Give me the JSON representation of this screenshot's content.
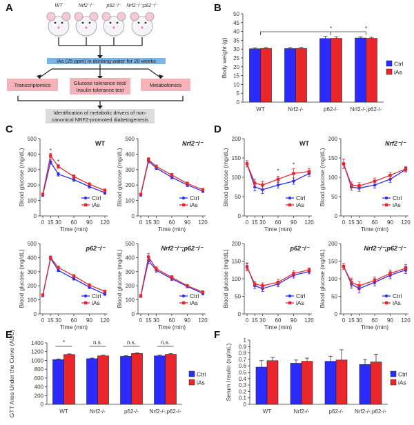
{
  "panel_letters": {
    "a": "A",
    "b": "B",
    "c": "C",
    "d": "D",
    "e": "E",
    "f": "F"
  },
  "panelA": {
    "mice": [
      "WT",
      "Nrf2⁻/⁻",
      "p62⁻/⁻",
      "Nrf2⁻/⁻;p62⁻/⁻"
    ],
    "treatment": "iAs (25 ppm) in drinking water for 20 weeks",
    "assays": [
      "Transcriptomics",
      "Glucose tolerance test/",
      "Insulin tolerance test",
      "Metabolomics"
    ],
    "result_line1": "Identification of metabolic drivers of non-",
    "result_line2": "canonical NRF2-promoted diabetogenesis",
    "colors": {
      "treatment_box": "#7fb3e0",
      "assay_box": "#f3b3b8",
      "result_box": "#dcdcdc"
    }
  },
  "legend": {
    "ctrl": "Ctrl",
    "ias": "iAs"
  },
  "colors": {
    "ctrl": "#2b2bff",
    "ias": "#e8262c",
    "error": "#333333"
  },
  "chart_data": [
    {
      "id": "B",
      "type": "bar",
      "ylabel": "Body weight (g)",
      "ylim": [
        0,
        50
      ],
      "yticks": [
        0,
        5,
        10,
        15,
        20,
        25,
        30,
        35,
        40,
        45,
        50
      ],
      "categories": [
        "WT",
        "Nrf2-/-",
        "p62-/-",
        "Nrf2-/-;p62-/-"
      ],
      "series": [
        {
          "name": "Ctrl",
          "values": [
            30.2,
            30.3,
            36.0,
            36.3
          ]
        },
        {
          "name": "iAs",
          "values": [
            30.4,
            30.4,
            36.1,
            36.1
          ]
        }
      ],
      "errors": [
        [
          0.5,
          0.6,
          1.2,
          0.6
        ],
        [
          0.5,
          0.6,
          0.8,
          0.6
        ]
      ],
      "annotations": [
        "*",
        "*"
      ]
    },
    {
      "id": "C",
      "type": "line",
      "ylabel": "Blood glucose (mg/dL)",
      "xlabel": "Time (min)",
      "x": [
        0,
        15,
        30,
        60,
        90,
        120
      ],
      "xlim": [
        0,
        120
      ],
      "ylim": [
        0,
        500
      ],
      "yticks": [
        0,
        100,
        200,
        300,
        400,
        500
      ],
      "panels": [
        {
          "title": "WT",
          "italic": false,
          "ctrl": [
            135,
            350,
            270,
            235,
            190,
            150
          ],
          "ias": [
            140,
            390,
            320,
            255,
            205,
            165
          ],
          "ctrl_err": [
            8,
            15,
            12,
            12,
            10,
            10
          ],
          "ias_err": [
            8,
            15,
            12,
            12,
            10,
            10
          ],
          "stars": [
            {
              "x": 15,
              "y": 410
            },
            {
              "x": 30,
              "y": 340
            }
          ]
        },
        {
          "title": "Nrf2⁻/⁻",
          "italic": true,
          "ctrl": [
            135,
            355,
            310,
            250,
            200,
            160
          ],
          "ias": [
            140,
            365,
            320,
            265,
            210,
            170
          ],
          "ctrl_err": [
            6,
            12,
            10,
            10,
            10,
            8
          ],
          "ias_err": [
            6,
            12,
            10,
            10,
            10,
            8
          ],
          "stars": []
        },
        {
          "title": "p62⁻/⁻",
          "italic": true,
          "ctrl": [
            130,
            395,
            310,
            250,
            190,
            140
          ],
          "ias": [
            135,
            400,
            330,
            270,
            205,
            160
          ],
          "ctrl_err": [
            8,
            12,
            10,
            10,
            10,
            8
          ],
          "ias_err": [
            8,
            12,
            10,
            10,
            10,
            8
          ],
          "stars": []
        },
        {
          "title": "Nrf2⁻/⁻;p62⁻/⁻",
          "italic": true,
          "ctrl": [
            125,
            380,
            310,
            250,
            195,
            145
          ],
          "ias": [
            130,
            405,
            320,
            260,
            200,
            155
          ],
          "ctrl_err": [
            8,
            25,
            15,
            12,
            10,
            10
          ],
          "ias_err": [
            8,
            25,
            15,
            12,
            10,
            10
          ],
          "stars": []
        }
      ]
    },
    {
      "id": "D",
      "type": "line",
      "ylabel": "Blood glucose (mg/dL)",
      "xlabel": "Time (min)",
      "x": [
        0,
        15,
        30,
        60,
        90,
        120
      ],
      "xlim": [
        0,
        120
      ],
      "ylim": [
        0,
        200
      ],
      "yticks": [
        0,
        50,
        100,
        150,
        200
      ],
      "panels": [
        {
          "title": "WT",
          "italic": false,
          "ctrl": [
            135,
            75,
            68,
            80,
            90,
            110
          ],
          "ias": [
            135,
            85,
            80,
            95,
            110,
            115
          ],
          "ctrl_err": [
            8,
            10,
            10,
            8,
            8,
            8
          ],
          "ias_err": [
            8,
            10,
            10,
            8,
            12,
            8
          ],
          "stars": [
            {
              "x": 60,
              "y": 112
            },
            {
              "x": 90,
              "y": 128
            }
          ]
        },
        {
          "title": "Nrf2⁻/⁻",
          "italic": true,
          "ctrl": [
            135,
            75,
            72,
            80,
            95,
            120
          ],
          "ias": [
            135,
            80,
            78,
            90,
            105,
            122
          ],
          "ctrl_err": [
            12,
            8,
            8,
            8,
            8,
            6
          ],
          "ias_err": [
            12,
            8,
            8,
            8,
            8,
            6
          ],
          "stars": []
        },
        {
          "title": "p62⁻/⁻",
          "italic": true,
          "ctrl": [
            135,
            80,
            72,
            85,
            110,
            120
          ],
          "ias": [
            133,
            85,
            80,
            90,
            115,
            125
          ],
          "ctrl_err": [
            10,
            8,
            8,
            8,
            8,
            6
          ],
          "ias_err": [
            10,
            8,
            8,
            8,
            8,
            6
          ],
          "stars": []
        },
        {
          "title": "Nrf2⁻/⁻;p62⁻/⁻",
          "italic": true,
          "ctrl": [
            135,
            85,
            72,
            90,
            110,
            125
          ],
          "ias": [
            135,
            90,
            80,
            95,
            115,
            130
          ],
          "ctrl_err": [
            8,
            12,
            12,
            10,
            10,
            10
          ],
          "ias_err": [
            8,
            12,
            12,
            10,
            10,
            10
          ],
          "stars": []
        }
      ]
    },
    {
      "id": "E",
      "type": "bar",
      "ylabel": "GTT Area Under the Curve (AUC)",
      "ylim": [
        0,
        1400
      ],
      "yticks": [
        0,
        200,
        400,
        600,
        800,
        1000,
        1200,
        1400
      ],
      "categories": [
        "WT",
        "Nrf2-/-",
        "p62-/-",
        "Nrf2-/-;p62-/-"
      ],
      "series": [
        {
          "name": "Ctrl",
          "values": [
            1020,
            1040,
            1095,
            1105
          ]
        },
        {
          "name": "iAs",
          "values": [
            1135,
            1105,
            1160,
            1140
          ]
        }
      ],
      "errors": [
        [
          15,
          15,
          15,
          15
        ],
        [
          15,
          15,
          15,
          15
        ]
      ],
      "annotations": [
        "*",
        "n.s.",
        "n.s.",
        "n.s."
      ]
    },
    {
      "id": "F",
      "type": "bar",
      "ylabel": "Serum Insulin (ng/mL)",
      "ylim": [
        0,
        1
      ],
      "yticks": [
        0,
        0.1,
        0.2,
        0.3,
        0.4,
        0.5,
        0.6,
        0.7,
        0.8,
        0.9,
        1
      ],
      "categories": [
        "WT",
        "Nrf2-/-",
        "p62-/-",
        "Nrf2-/-;p62-/-"
      ],
      "series": [
        {
          "name": "Ctrl",
          "values": [
            0.58,
            0.64,
            0.67,
            0.62
          ]
        },
        {
          "name": "iAs",
          "values": [
            0.68,
            0.67,
            0.69,
            0.66
          ]
        }
      ],
      "errors": [
        [
          0.1,
          0.05,
          0.08,
          0.08
        ],
        [
          0.05,
          0.05,
          0.16,
          0.12
        ]
      ]
    }
  ]
}
